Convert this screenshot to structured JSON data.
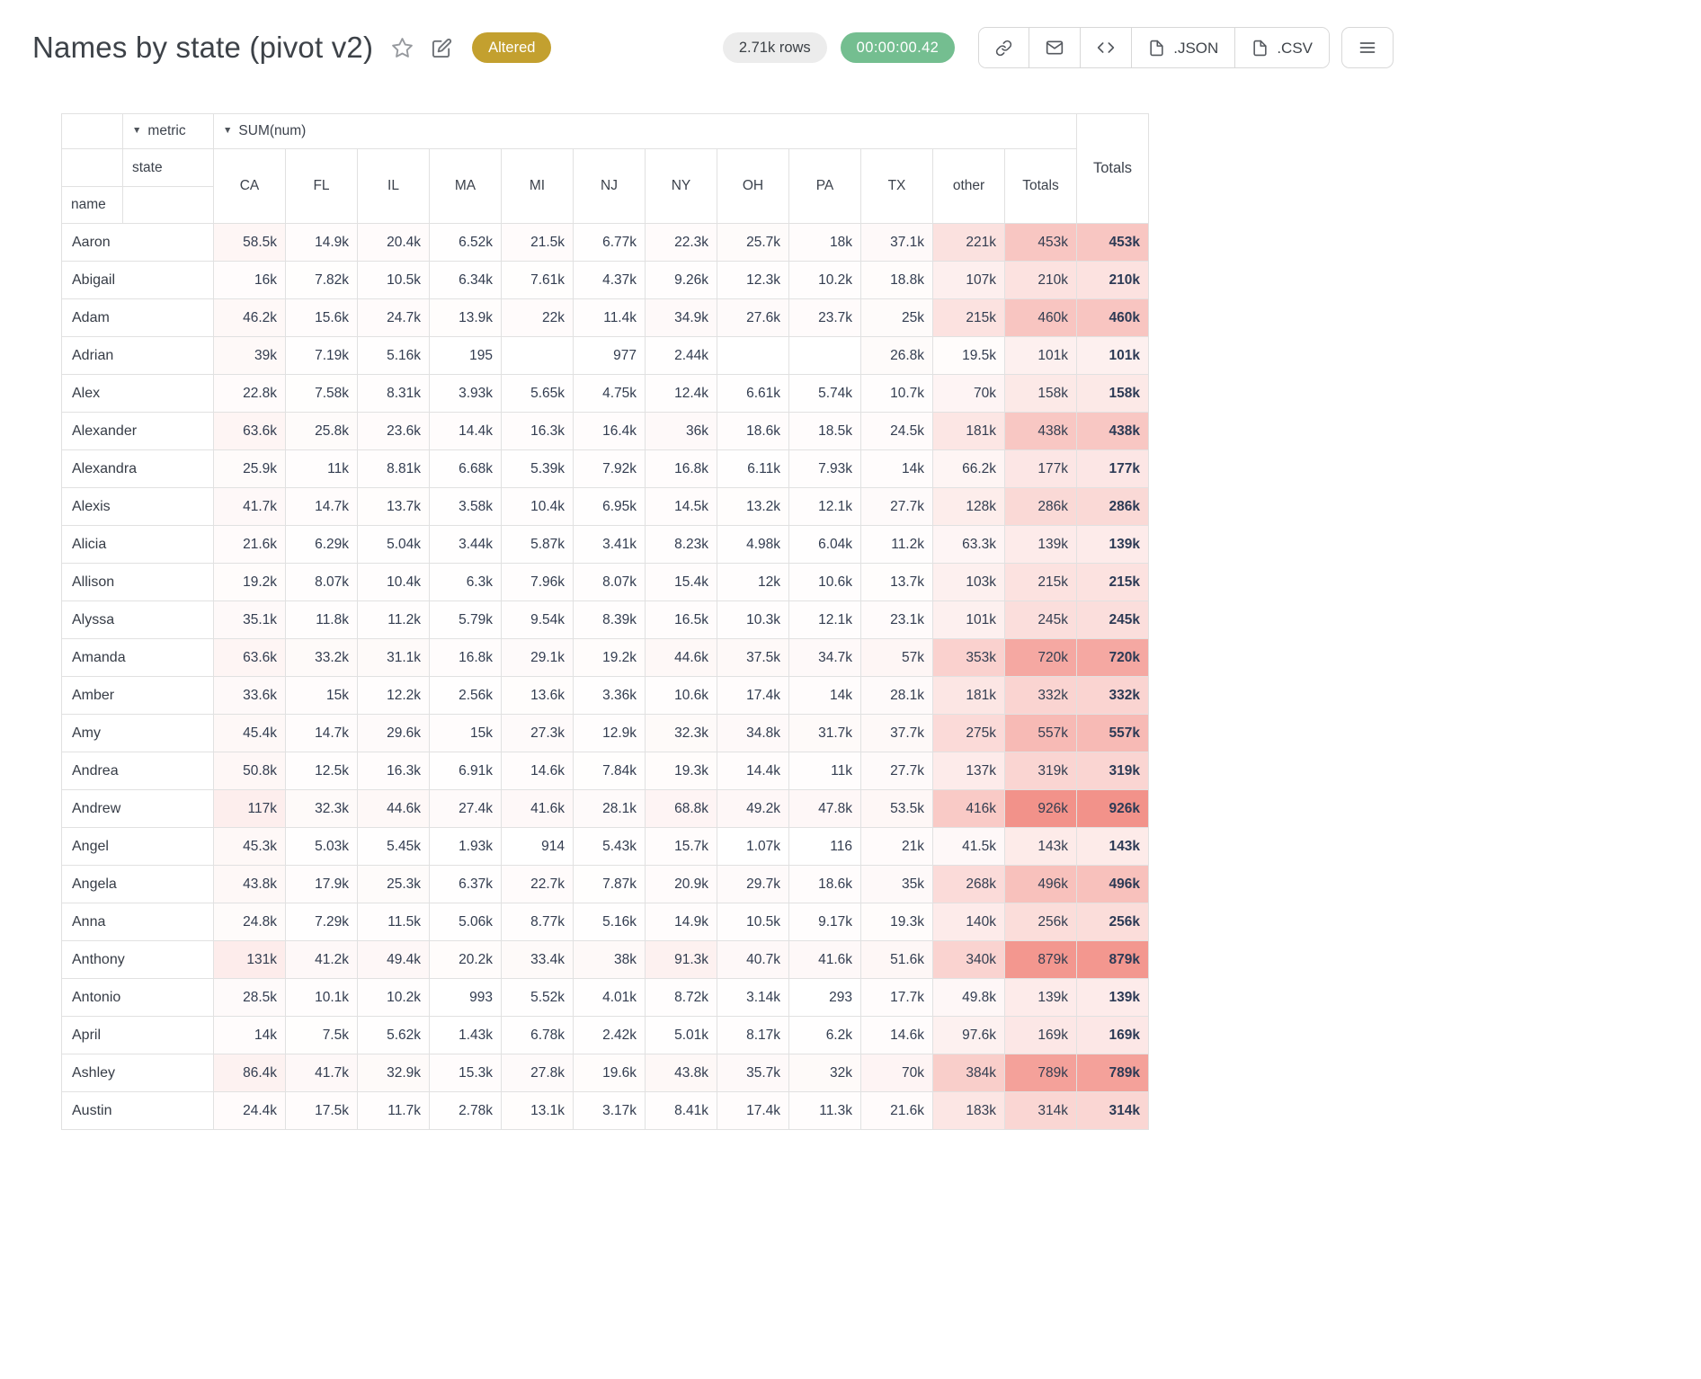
{
  "header": {
    "title": "Names by state (pivot v2)",
    "altered_badge": "Altered",
    "rows_count": "2.71k rows",
    "timer": "00:00:00.42",
    "export_json": ".JSON",
    "export_csv": ".CSV"
  },
  "pivot": {
    "metric_label": "metric",
    "metric_value": "SUM(num)",
    "col_axis": "state",
    "row_axis": "name",
    "grand_total_label": "Totals",
    "columns": [
      "CA",
      "FL",
      "IL",
      "MA",
      "MI",
      "NJ",
      "NY",
      "OH",
      "PA",
      "TX",
      "other",
      "Totals"
    ],
    "rows": [
      {
        "name": "Aaron",
        "values": [
          "58.5k",
          "14.9k",
          "20.4k",
          "6.52k",
          "21.5k",
          "6.77k",
          "22.3k",
          "25.7k",
          "18k",
          "37.1k",
          "221k",
          "453k"
        ],
        "total": "453k"
      },
      {
        "name": "Abigail",
        "values": [
          "16k",
          "7.82k",
          "10.5k",
          "6.34k",
          "7.61k",
          "4.37k",
          "9.26k",
          "12.3k",
          "10.2k",
          "18.8k",
          "107k",
          "210k"
        ],
        "total": "210k"
      },
      {
        "name": "Adam",
        "values": [
          "46.2k",
          "15.6k",
          "24.7k",
          "13.9k",
          "22k",
          "11.4k",
          "34.9k",
          "27.6k",
          "23.7k",
          "25k",
          "215k",
          "460k"
        ],
        "total": "460k"
      },
      {
        "name": "Adrian",
        "values": [
          "39k",
          "7.19k",
          "5.16k",
          "195",
          "",
          "977",
          "2.44k",
          "",
          "",
          "26.8k",
          "19.5k",
          "101k"
        ],
        "total": "101k"
      },
      {
        "name": "Alex",
        "values": [
          "22.8k",
          "7.58k",
          "8.31k",
          "3.93k",
          "5.65k",
          "4.75k",
          "12.4k",
          "6.61k",
          "5.74k",
          "10.7k",
          "70k",
          "158k"
        ],
        "total": "158k"
      },
      {
        "name": "Alexander",
        "values": [
          "63.6k",
          "25.8k",
          "23.6k",
          "14.4k",
          "16.3k",
          "16.4k",
          "36k",
          "18.6k",
          "18.5k",
          "24.5k",
          "181k",
          "438k"
        ],
        "total": "438k"
      },
      {
        "name": "Alexandra",
        "values": [
          "25.9k",
          "11k",
          "8.81k",
          "6.68k",
          "5.39k",
          "7.92k",
          "16.8k",
          "6.11k",
          "7.93k",
          "14k",
          "66.2k",
          "177k"
        ],
        "total": "177k"
      },
      {
        "name": "Alexis",
        "values": [
          "41.7k",
          "14.7k",
          "13.7k",
          "3.58k",
          "10.4k",
          "6.95k",
          "14.5k",
          "13.2k",
          "12.1k",
          "27.7k",
          "128k",
          "286k"
        ],
        "total": "286k"
      },
      {
        "name": "Alicia",
        "values": [
          "21.6k",
          "6.29k",
          "5.04k",
          "3.44k",
          "5.87k",
          "3.41k",
          "8.23k",
          "4.98k",
          "6.04k",
          "11.2k",
          "63.3k",
          "139k"
        ],
        "total": "139k"
      },
      {
        "name": "Allison",
        "values": [
          "19.2k",
          "8.07k",
          "10.4k",
          "6.3k",
          "7.96k",
          "8.07k",
          "15.4k",
          "12k",
          "10.6k",
          "13.7k",
          "103k",
          "215k"
        ],
        "total": "215k"
      },
      {
        "name": "Alyssa",
        "values": [
          "35.1k",
          "11.8k",
          "11.2k",
          "5.79k",
          "9.54k",
          "8.39k",
          "16.5k",
          "10.3k",
          "12.1k",
          "23.1k",
          "101k",
          "245k"
        ],
        "total": "245k"
      },
      {
        "name": "Amanda",
        "values": [
          "63.6k",
          "33.2k",
          "31.1k",
          "16.8k",
          "29.1k",
          "19.2k",
          "44.6k",
          "37.5k",
          "34.7k",
          "57k",
          "353k",
          "720k"
        ],
        "total": "720k"
      },
      {
        "name": "Amber",
        "values": [
          "33.6k",
          "15k",
          "12.2k",
          "2.56k",
          "13.6k",
          "3.36k",
          "10.6k",
          "17.4k",
          "14k",
          "28.1k",
          "181k",
          "332k"
        ],
        "total": "332k"
      },
      {
        "name": "Amy",
        "values": [
          "45.4k",
          "14.7k",
          "29.6k",
          "15k",
          "27.3k",
          "12.9k",
          "32.3k",
          "34.8k",
          "31.7k",
          "37.7k",
          "275k",
          "557k"
        ],
        "total": "557k"
      },
      {
        "name": "Andrea",
        "values": [
          "50.8k",
          "12.5k",
          "16.3k",
          "6.91k",
          "14.6k",
          "7.84k",
          "19.3k",
          "14.4k",
          "11k",
          "27.7k",
          "137k",
          "319k"
        ],
        "total": "319k"
      },
      {
        "name": "Andrew",
        "values": [
          "117k",
          "32.3k",
          "44.6k",
          "27.4k",
          "41.6k",
          "28.1k",
          "68.8k",
          "49.2k",
          "47.8k",
          "53.5k",
          "416k",
          "926k"
        ],
        "total": "926k"
      },
      {
        "name": "Angel",
        "values": [
          "45.3k",
          "5.03k",
          "5.45k",
          "1.93k",
          "914",
          "5.43k",
          "15.7k",
          "1.07k",
          "116",
          "21k",
          "41.5k",
          "143k"
        ],
        "total": "143k"
      },
      {
        "name": "Angela",
        "values": [
          "43.8k",
          "17.9k",
          "25.3k",
          "6.37k",
          "22.7k",
          "7.87k",
          "20.9k",
          "29.7k",
          "18.6k",
          "35k",
          "268k",
          "496k"
        ],
        "total": "496k"
      },
      {
        "name": "Anna",
        "values": [
          "24.8k",
          "7.29k",
          "11.5k",
          "5.06k",
          "8.77k",
          "5.16k",
          "14.9k",
          "10.5k",
          "9.17k",
          "19.3k",
          "140k",
          "256k"
        ],
        "total": "256k"
      },
      {
        "name": "Anthony",
        "values": [
          "131k",
          "41.2k",
          "49.4k",
          "20.2k",
          "33.4k",
          "38k",
          "91.3k",
          "40.7k",
          "41.6k",
          "51.6k",
          "340k",
          "879k"
        ],
        "total": "879k"
      },
      {
        "name": "Antonio",
        "values": [
          "28.5k",
          "10.1k",
          "10.2k",
          "993",
          "5.52k",
          "4.01k",
          "8.72k",
          "3.14k",
          "293",
          "17.7k",
          "49.8k",
          "139k"
        ],
        "total": "139k"
      },
      {
        "name": "April",
        "values": [
          "14k",
          "7.5k",
          "5.62k",
          "1.43k",
          "6.78k",
          "2.42k",
          "5.01k",
          "8.17k",
          "6.2k",
          "14.6k",
          "97.6k",
          "169k"
        ],
        "total": "169k"
      },
      {
        "name": "Ashley",
        "values": [
          "86.4k",
          "41.7k",
          "32.9k",
          "15.3k",
          "27.8k",
          "19.6k",
          "43.8k",
          "35.7k",
          "32k",
          "70k",
          "384k",
          "789k"
        ],
        "total": "789k"
      },
      {
        "name": "Austin",
        "values": [
          "24.4k",
          "17.5k",
          "11.7k",
          "2.78k",
          "13.1k",
          "3.17k",
          "8.41k",
          "17.4k",
          "11.3k",
          "21.6k",
          "183k",
          "314k"
        ],
        "total": "314k"
      }
    ]
  },
  "colors": {
    "altered_bg": "#c3a02f",
    "timer_bg": "#74be90",
    "rows_pill_bg": "#ececec",
    "heat_max": "#f2928a"
  }
}
